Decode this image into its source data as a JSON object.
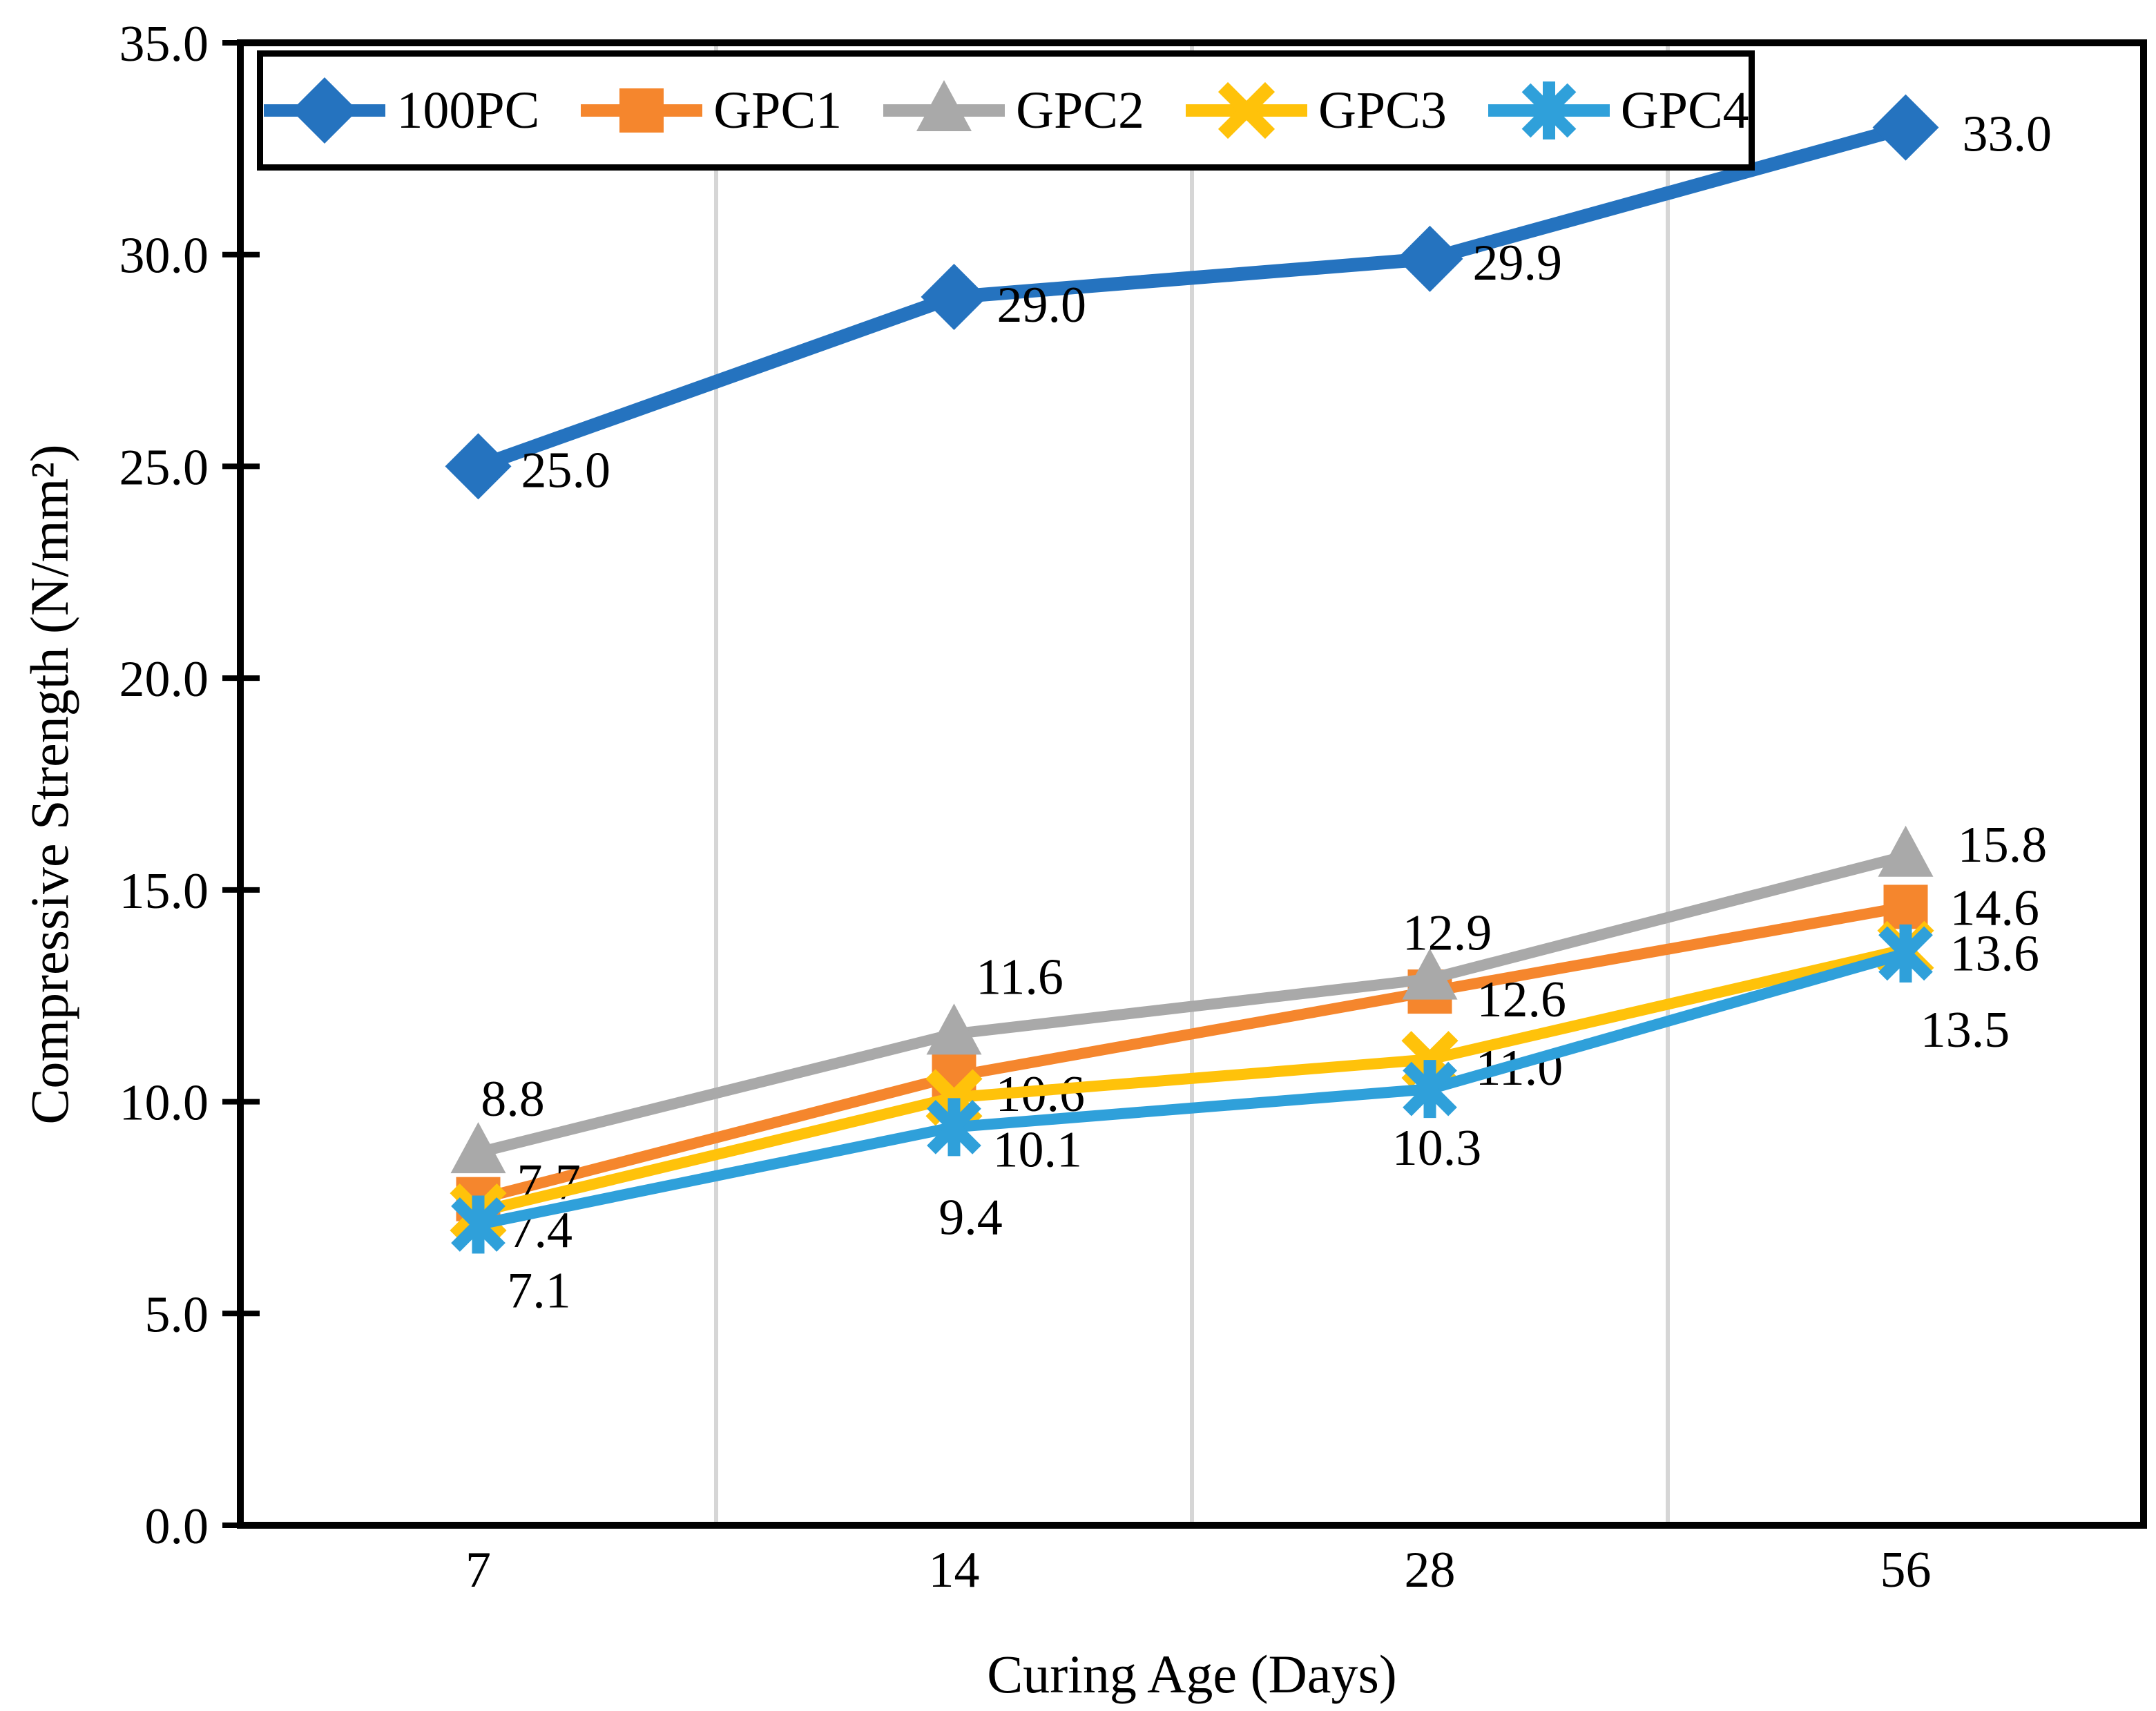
{
  "figure": {
    "background": "#ffffff"
  },
  "chart_data": {
    "type": "line",
    "title": "",
    "xlabel": "Curing Age (Days)",
    "ylabel": "Compressive Strength  (N/mm²)",
    "categories": [
      "7",
      "14",
      "28",
      "56"
    ],
    "y_tick_labels": [
      "35.0",
      "30.0",
      "25.0",
      "20.0",
      "15.0",
      "10.0",
      "5.0",
      "0.0"
    ],
    "ylim": [
      0,
      35
    ],
    "y_tick_step": 5,
    "grid": "vertical-lines-at-category-boundaries",
    "gridline_color": "#D6D6D6",
    "axis_color": "#000000",
    "legend_position": "top-inside-border-box",
    "series": [
      {
        "name": "100PC",
        "marker": "diamond",
        "color": "#2573BF",
        "values": [
          25.0,
          29.0,
          29.9,
          33.0
        ],
        "labels": [
          "25.0",
          "29.0",
          "29.9",
          "33.0"
        ]
      },
      {
        "name": "GPC1",
        "marker": "square",
        "color": "#F5862D",
        "values": [
          7.7,
          10.6,
          12.6,
          14.6
        ],
        "labels": [
          "7.7",
          "10.6",
          "12.6",
          "14.6"
        ]
      },
      {
        "name": "GPC2",
        "marker": "triangle",
        "color": "#A9A9A9",
        "values": [
          8.8,
          11.6,
          12.9,
          15.8
        ],
        "labels": [
          "8.8",
          "11.6",
          "12.9",
          "15.8"
        ]
      },
      {
        "name": "GPC3",
        "marker": "x",
        "color": "#FFC20A",
        "values": [
          7.4,
          10.1,
          11.0,
          13.6
        ],
        "labels": [
          "7.4",
          "10.1",
          "11.0",
          "13.6"
        ]
      },
      {
        "name": "GPC4",
        "marker": "asterisk",
        "color": "#2FA0DA",
        "values": [
          7.1,
          9.4,
          10.3,
          13.5
        ],
        "labels": [
          "7.1",
          "9.4",
          "10.3",
          "13.5"
        ]
      }
    ]
  }
}
